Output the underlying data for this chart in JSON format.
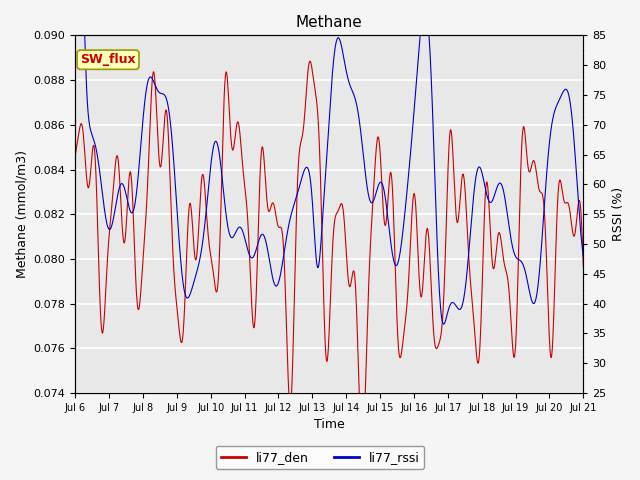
{
  "title": "Methane",
  "xlabel": "Time",
  "ylabel_left": "Methane (mmol/m3)",
  "ylabel_right": "RSSI (%)",
  "ylim_left": [
    0.074,
    0.09
  ],
  "ylim_right": [
    25,
    85
  ],
  "yticks_left": [
    0.074,
    0.076,
    0.078,
    0.08,
    0.082,
    0.084,
    0.086,
    0.088,
    0.09
  ],
  "yticks_right": [
    25,
    30,
    35,
    40,
    45,
    50,
    55,
    60,
    65,
    70,
    75,
    80,
    85
  ],
  "xtick_labels": [
    "Jul 6",
    "Jul 7",
    "Jul 8",
    "Jul 9",
    "Jul 10",
    "Jul 11",
    "Jul 12",
    "Jul 13",
    "Jul 14",
    "Jul 15",
    "Jul 16",
    "Jul 17",
    "Jul 18",
    "Jul 19",
    "Jul 20",
    "Jul 21"
  ],
  "color_red": "#cc0000",
  "color_blue": "#0000cc",
  "legend_labels": [
    "li77_den",
    "li77_rssi"
  ],
  "annotation_text": "SW_flux",
  "annotation_facecolor": "#ffffbb",
  "annotation_edgecolor": "#999900",
  "annotation_textcolor": "#cc0000",
  "plot_bg_color": "#e8e8e8",
  "fig_bg_color": "#f5f5f5",
  "grid_color": "#ffffff"
}
